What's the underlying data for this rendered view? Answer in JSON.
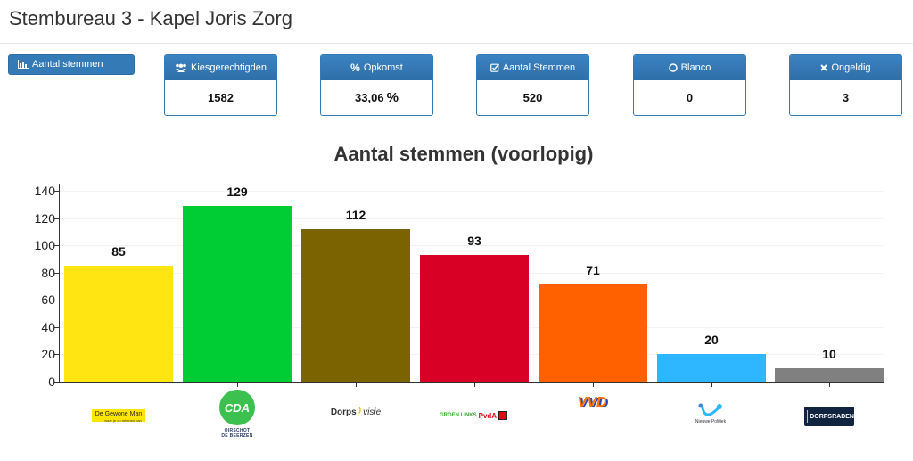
{
  "header": {
    "title": "Stembureau 3 - Kapel Joris Zorg"
  },
  "toolbar": {
    "tab_label": "Aantal stemmen",
    "tab_icon": "bar-chart-icon"
  },
  "stats": [
    {
      "label": "Kiesgerechtigden",
      "icon": "users-icon",
      "value": "1582"
    },
    {
      "label": "Opkomst",
      "icon": "percent-icon",
      "value": "33,06",
      "suffix": "%"
    },
    {
      "label": "Aantal Stemmen",
      "icon": "checkbox-icon",
      "value": "520"
    },
    {
      "label": "Blanco",
      "icon": "circle-icon",
      "value": "0"
    },
    {
      "label": "Ongeldig",
      "icon": "x-icon",
      "value": "3"
    }
  ],
  "chart_data": {
    "type": "bar",
    "title": "Aantal stemmen (voorlopig)",
    "xlabel": "",
    "ylabel": "",
    "ylim": [
      0,
      145
    ],
    "yticks": [
      0,
      20,
      40,
      60,
      80,
      100,
      120,
      140
    ],
    "grid": true,
    "legend": "none",
    "categories": [
      "De Gewone Man",
      "CDA",
      "Dorpsvisie",
      "GroenLinks PvdA",
      "VVD",
      "Nieuwe Politiek",
      "Dorpsraden"
    ],
    "values": [
      85,
      129,
      112,
      93,
      71,
      20,
      10
    ],
    "colors": [
      "#ffe612",
      "#00cc33",
      "#7a6300",
      "#d90026",
      "#ff6000",
      "#2eb7ff",
      "#808080"
    ],
    "data_labels": [
      "85",
      "129",
      "112",
      "93",
      "71",
      "20",
      "10"
    ]
  },
  "logos": {
    "dgm": {
      "text": "De Gewone Man",
      "sub": "waar je op rekenen kan"
    },
    "cda": {
      "text": "CDA",
      "sub1": "OIRSCHOT",
      "sub2": "DE BEERZEN"
    },
    "dorps": {
      "text1": "Dorps",
      "text2": "visie"
    },
    "pvda": {
      "text1": "GROEN LINKS",
      "text2": "PvdA"
    },
    "vvd": {
      "text": "VVD"
    },
    "np": {
      "text": "Nieuwe Politiek"
    },
    "dr": {
      "text": "DORPSRADEN"
    }
  }
}
